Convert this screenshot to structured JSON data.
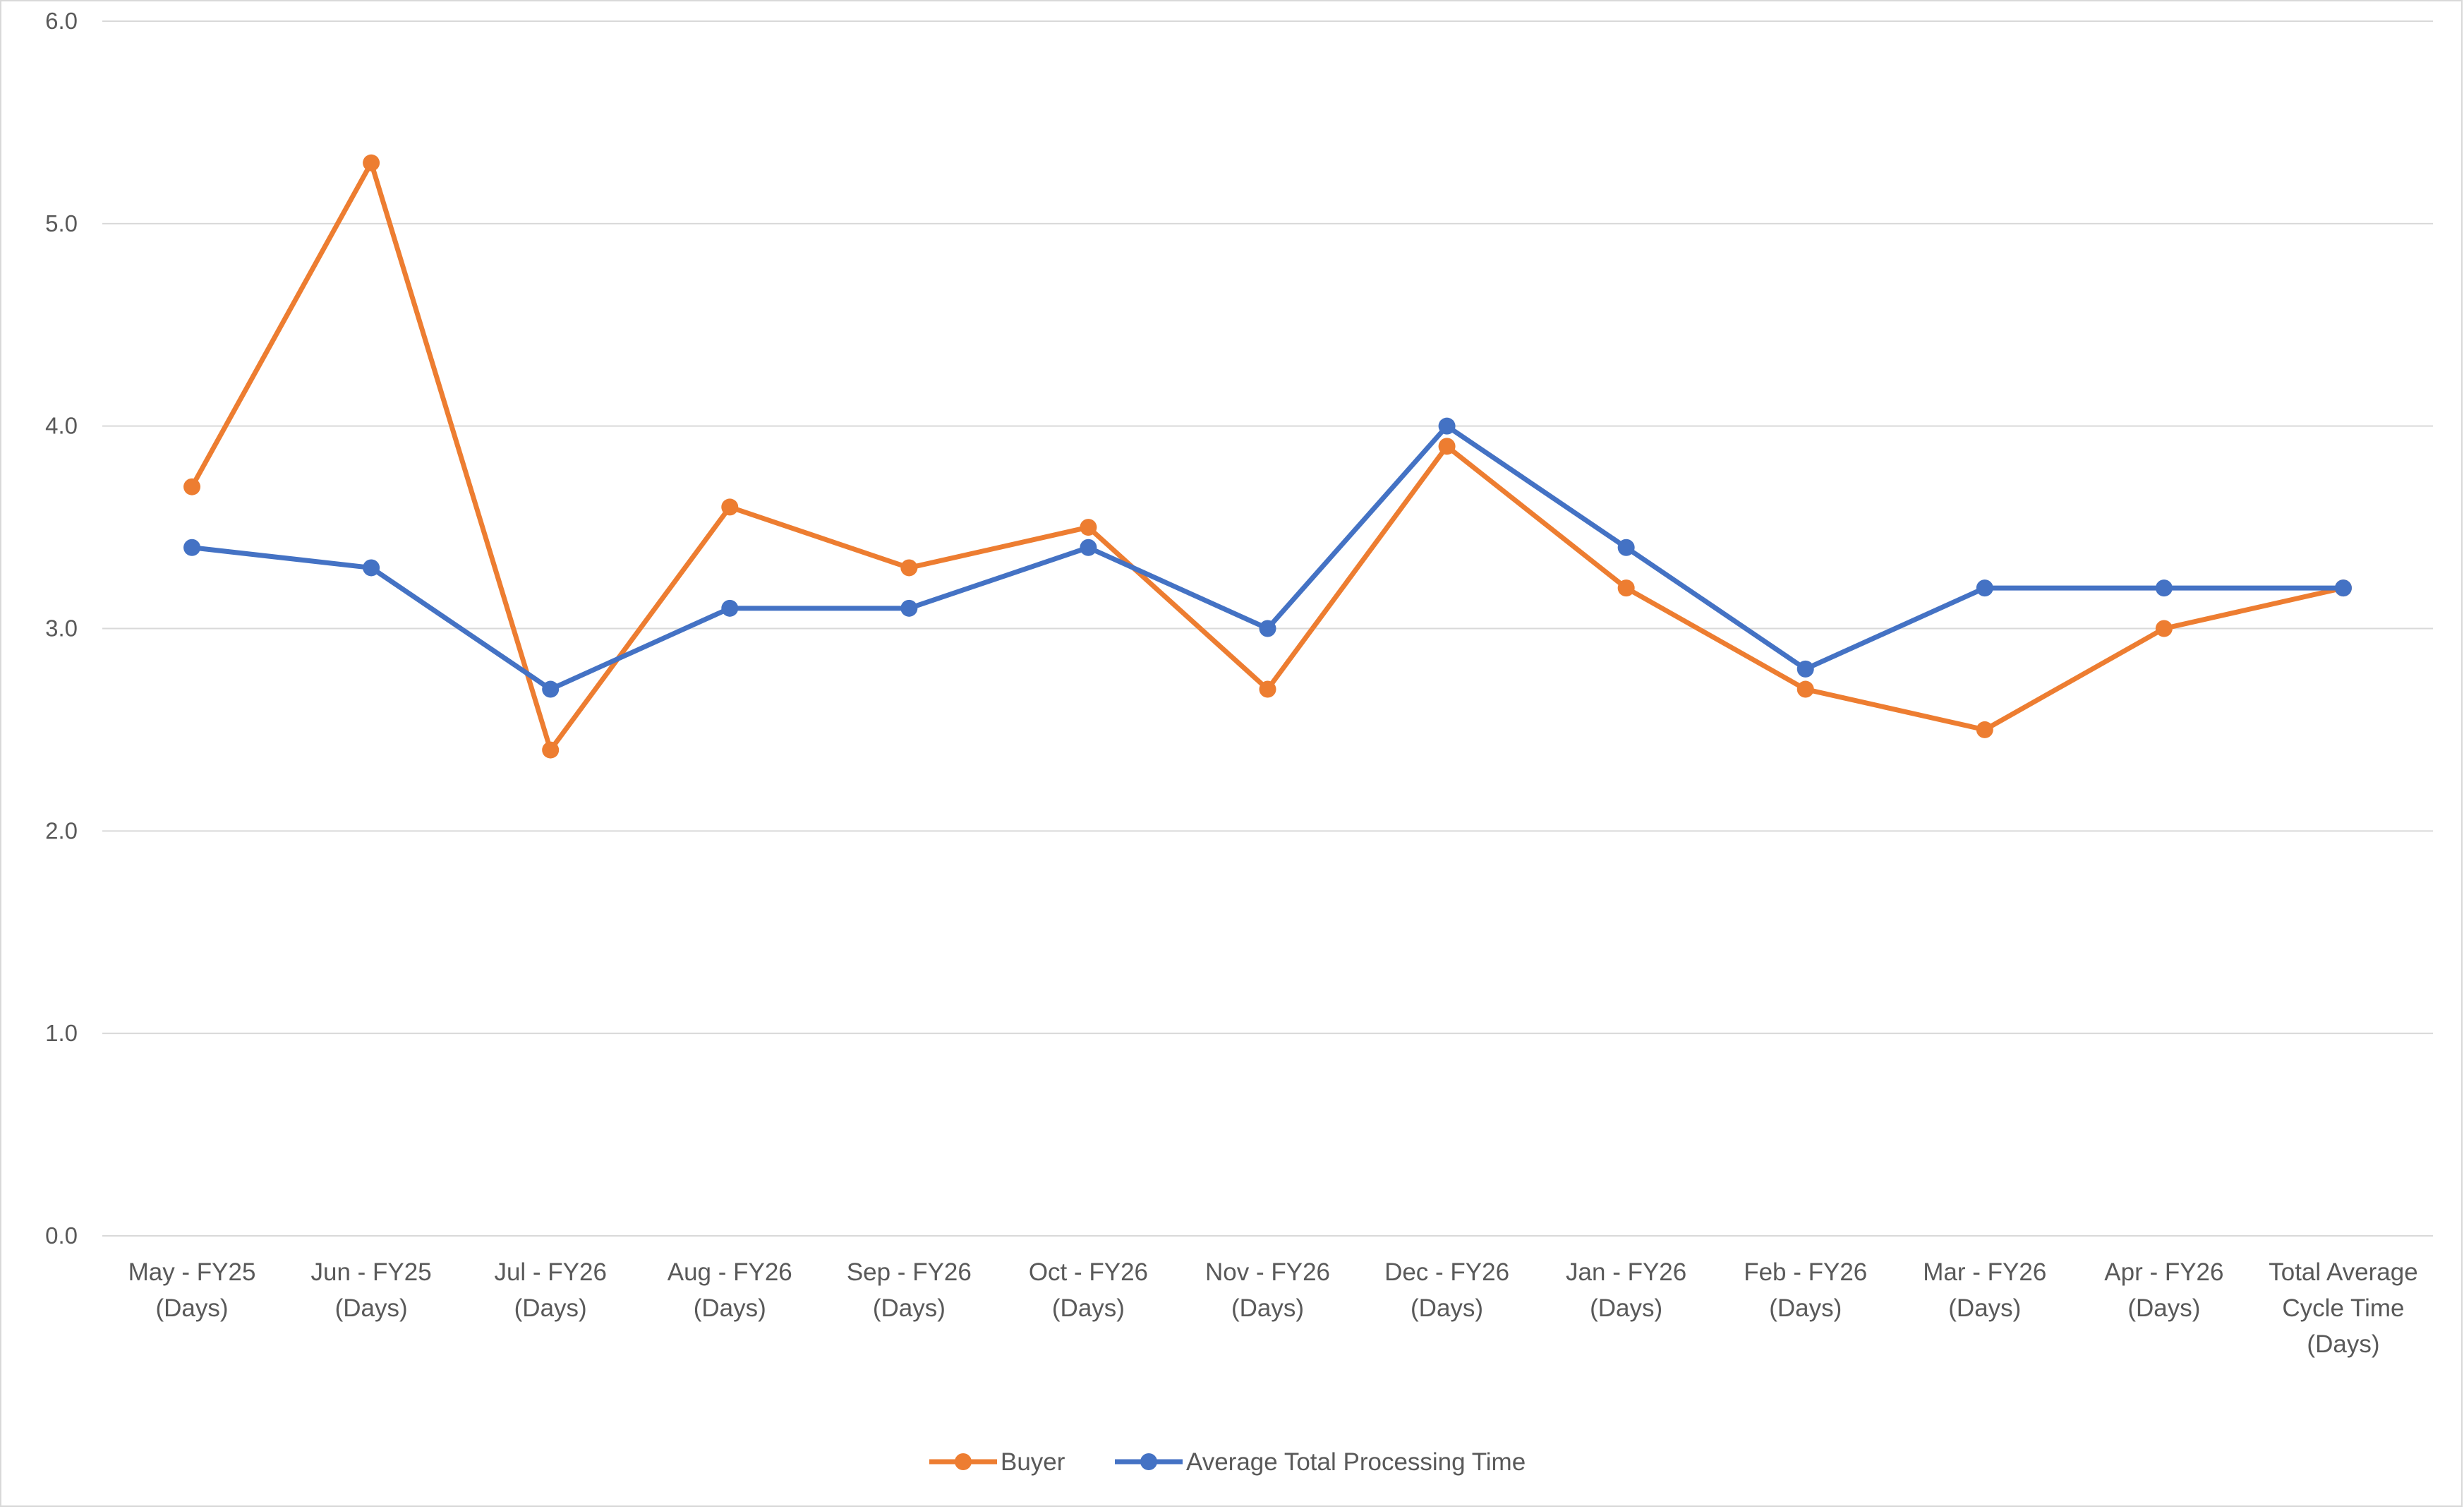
{
  "chart_data": {
    "type": "line",
    "title": "",
    "xlabel": "",
    "ylabel": "",
    "categories": [
      [
        "May - FY25",
        "(Days)"
      ],
      [
        "Jun - FY25",
        "(Days)"
      ],
      [
        "Jul - FY26",
        "(Days)"
      ],
      [
        "Aug - FY26",
        "(Days)"
      ],
      [
        "Sep - FY26",
        "(Days)"
      ],
      [
        "Oct - FY26",
        "(Days)"
      ],
      [
        "Nov - FY26",
        "(Days)"
      ],
      [
        "Dec - FY26",
        "(Days)"
      ],
      [
        "Jan - FY26",
        "(Days)"
      ],
      [
        "Feb - FY26",
        "(Days)"
      ],
      [
        "Mar - FY26",
        "(Days)"
      ],
      [
        "Apr - FY26",
        "(Days)"
      ],
      [
        "Total Average",
        "Cycle Time",
        "(Days)"
      ]
    ],
    "yticks": [
      "0.0",
      "1.0",
      "2.0",
      "3.0",
      "4.0",
      "5.0",
      "6.0"
    ],
    "ylim": [
      0,
      6
    ],
    "grid": true,
    "legend_position": "bottom",
    "series": [
      {
        "name": "Buyer",
        "color": "#ed7d31",
        "values": [
          3.7,
          5.3,
          2.4,
          3.6,
          3.3,
          3.5,
          2.7,
          3.9,
          3.2,
          2.7,
          2.5,
          3.0,
          3.2
        ]
      },
      {
        "name": "Average Total Processing Time",
        "color": "#4472c4",
        "values": [
          3.4,
          3.3,
          2.7,
          3.1,
          3.1,
          3.4,
          3.0,
          4.0,
          3.4,
          2.8,
          3.2,
          3.2,
          3.2
        ]
      }
    ]
  }
}
